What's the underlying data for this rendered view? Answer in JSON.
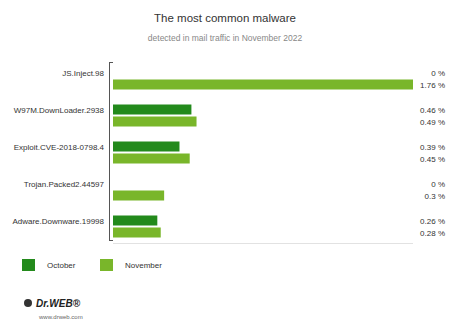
{
  "chart_data": {
    "type": "bar",
    "orientation": "horizontal",
    "title": "The most common malware",
    "subtitle": "detected in mail traffic in November 2022",
    "categories": [
      "JS.Inject.98",
      "W97M.DownLoader.2938",
      "Exploit.CVE-2018-0798.4",
      "Trojan.Packed2.44597",
      "Adware.Downware.19998"
    ],
    "series": [
      {
        "name": "October",
        "color": "#238a1c",
        "values": [
          0,
          0.46,
          0.39,
          0,
          0.26
        ],
        "value_labels": [
          "0 %",
          "0.46 %",
          "0.39 %",
          "0 %",
          "0.26 %"
        ]
      },
      {
        "name": "November",
        "color": "#79b62a",
        "values": [
          1.76,
          0.49,
          0.45,
          0.3,
          0.28
        ],
        "value_labels": [
          "1.76 %",
          "0.49 %",
          "0.45 %",
          "0.3 %",
          "0.28 %"
        ]
      }
    ],
    "xlim": [
      0,
      1.76
    ],
    "data_labels": true,
    "tick_labels": "y",
    "legend": "bottom-left",
    "annotations": [
      "Dr.WEB®",
      "www.drweb.com"
    ]
  }
}
